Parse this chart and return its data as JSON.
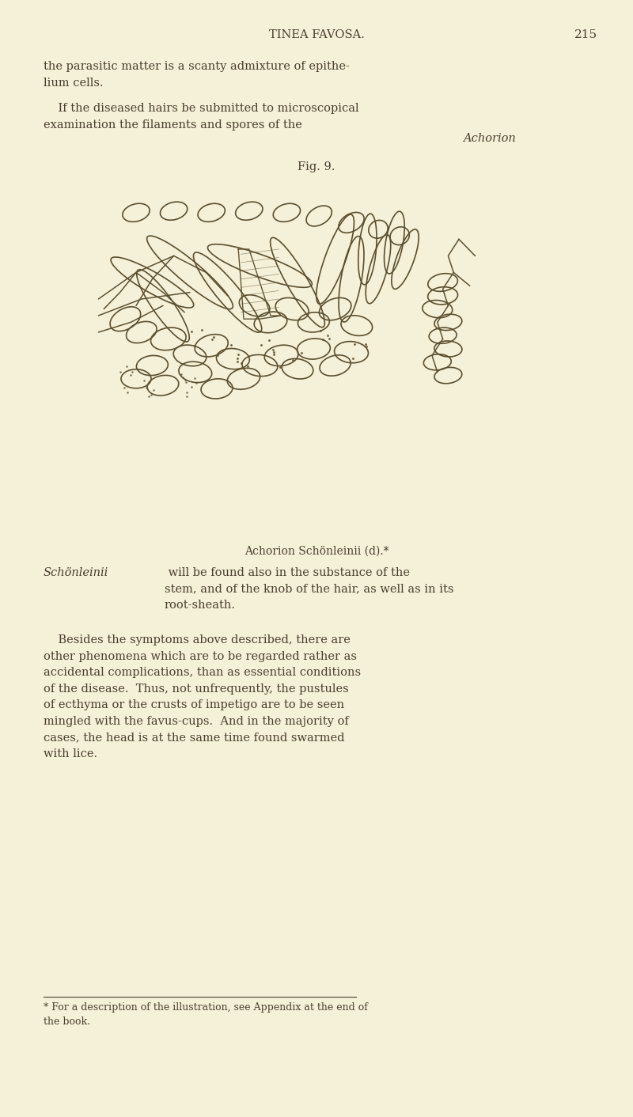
{
  "background_color": "#f5f0d8",
  "text_color": "#4a3f2f",
  "header_text": "TINEA FAVOSA.",
  "page_number": "215",
  "body_text_1": "the parasitic matter is a scanty admixture of epithe-\nlium cells.",
  "fig_caption": "Fig. 9.",
  "fig_label": "Achorion Schönleinii (d).*",
  "body_text_4": "    Besides the symptoms above described, there are\nother phenomena which are to be regarded rather as\naccidental complications, than as essential conditions\nof the disease.  Thus, not unfrequently, the pustules\nof ecthyma or the crusts of impetigo are to be seen\nmingled with the favus-cups.  And in the majority of\ncases, the head is at the same time found swarmed\nwith lice.",
  "footnote": "* For a description of the illustration, see Appendix at the end of\nthe book.",
  "draw_color": "#5a5030",
  "line_width": 1.2
}
